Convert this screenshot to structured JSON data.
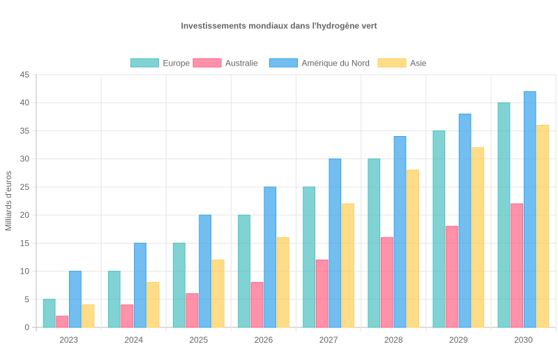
{
  "chart_data": {
    "type": "bar",
    "title": "Investissements mondiaux dans l'hydrogène vert",
    "xlabel": "",
    "ylabel": "Milliards d'euros",
    "ylim": [
      0,
      45
    ],
    "yticks": [
      0,
      5,
      10,
      15,
      20,
      25,
      30,
      35,
      40,
      45
    ],
    "grid": true,
    "legend_position": "top",
    "categories": [
      "2023",
      "2024",
      "2025",
      "2026",
      "2027",
      "2028",
      "2029",
      "2030"
    ],
    "series": [
      {
        "name": "Europe",
        "values": [
          5,
          10,
          15,
          20,
          25,
          30,
          35,
          40
        ],
        "color": "#4bc0c0"
      },
      {
        "name": "Australie",
        "values": [
          2,
          4,
          6,
          8,
          12,
          16,
          18,
          22
        ],
        "color": "#ff6384"
      },
      {
        "name": "Amérique du Nord",
        "values": [
          10,
          15,
          20,
          25,
          30,
          34,
          38,
          42
        ],
        "color": "#36a2eb"
      },
      {
        "name": "Asie",
        "values": [
          4,
          8,
          12,
          16,
          22,
          28,
          32,
          36
        ],
        "color": "#ffce56"
      }
    ]
  }
}
